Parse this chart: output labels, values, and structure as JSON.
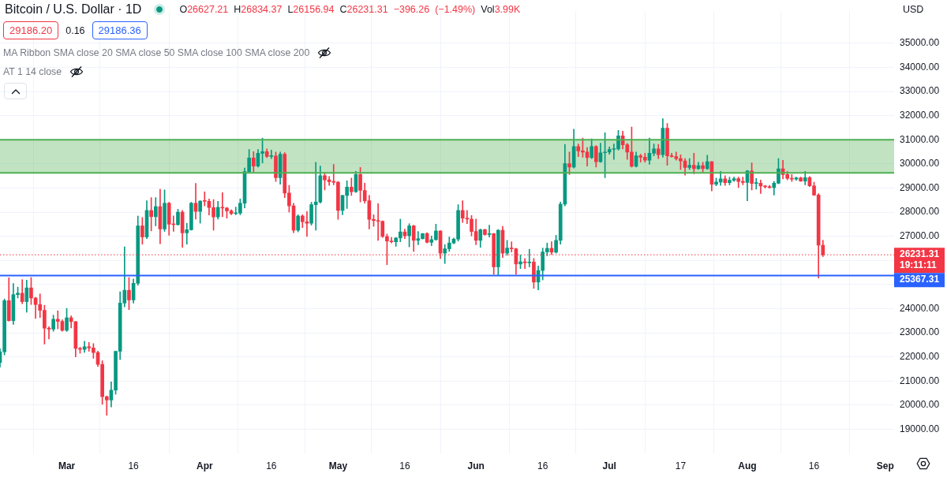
{
  "chart_data": {
    "type": "candlestick",
    "title": "Bitcoin / U.S. Dollar · 1D",
    "subtitle": "O26627.21 H26834.37 L26156.94 C26231.31 −396.26 (−1.49%) Vol3.99K",
    "annotations": [
      "29186.20",
      "0.16",
      "29186.36",
      "MA Ribbon SMA close 20 SMA close 50 SMA close 100 SMA close 200",
      "AT 1 14 close",
      "USD"
    ],
    "x": [
      "--02-14",
      "--02-15",
      "--02-16",
      "--02-17",
      "--02-18",
      "--02-19",
      "--02-20",
      "--02-21",
      "--02-22",
      "--02-23",
      "--02-24",
      "--02-25",
      "--02-26",
      "--02-27",
      "--02-28",
      "--03-01",
      "--03-02",
      "--03-03",
      "--03-04",
      "--03-05",
      "--03-06",
      "--03-07",
      "--03-08",
      "--03-09",
      "--03-10",
      "--03-11",
      "--03-12",
      "--03-13",
      "--03-14",
      "--03-15",
      "--03-16",
      "--03-17",
      "--03-18",
      "--03-19",
      "--03-20",
      "--03-21",
      "--03-22",
      "--03-23",
      "--03-24",
      "--03-25",
      "--03-26",
      "--03-27",
      "--03-28",
      "--03-29",
      "--03-30",
      "--03-31",
      "--04-01",
      "--04-02",
      "--04-03",
      "--04-04",
      "--04-05",
      "--04-06",
      "--04-07",
      "--04-08",
      "--04-09",
      "--04-10",
      "--04-11",
      "--04-12",
      "--04-13",
      "--04-14",
      "--04-15",
      "--04-16",
      "--04-17",
      "--04-18",
      "--04-19",
      "--04-20",
      "--04-21",
      "--04-22",
      "--04-23",
      "--04-24",
      "--04-25",
      "--04-26",
      "--04-27",
      "--04-28",
      "--04-29",
      "--04-30",
      "--05-01",
      "--05-02",
      "--05-03",
      "--05-04",
      "--05-05",
      "--05-06",
      "--05-07",
      "--05-08",
      "--05-09",
      "--05-10",
      "--05-11",
      "--05-12",
      "--05-13",
      "--05-14",
      "--05-15",
      "--05-16",
      "--05-17",
      "--05-18",
      "--05-19",
      "--05-20",
      "--05-21",
      "--05-22",
      "--05-23",
      "--05-24",
      "--05-25",
      "--05-26",
      "--05-27",
      "--05-28",
      "--05-29",
      "--05-30",
      "--05-31",
      "--06-01",
      "--06-02",
      "--06-03",
      "--06-04",
      "--06-05",
      "--06-06",
      "--06-07",
      "--06-08",
      "--06-09",
      "--06-10",
      "--06-11",
      "--06-12",
      "--06-13",
      "--06-14",
      "--06-15",
      "--06-16",
      "--06-17",
      "--06-18",
      "--06-19",
      "--06-20",
      "--06-21",
      "--06-22",
      "--06-23",
      "--06-24",
      "--06-25",
      "--06-26",
      "--06-27",
      "--06-28",
      "--06-29",
      "--06-30",
      "--07-01",
      "--07-02",
      "--07-03",
      "--07-04",
      "--07-05",
      "--07-06",
      "--07-07",
      "--07-08",
      "--07-09",
      "--07-10",
      "--07-11",
      "--07-12",
      "--07-13",
      "--07-14",
      "--07-15",
      "--07-16",
      "--07-17",
      "--07-18",
      "--07-19",
      "--07-20",
      "--07-21",
      "--07-22",
      "--07-23",
      "--07-24",
      "--07-25",
      "--07-26",
      "--07-27",
      "--07-28",
      "--07-29",
      "--07-30",
      "--07-31",
      "--08-01",
      "--08-02",
      "--08-03",
      "--08-04",
      "--08-05",
      "--08-06",
      "--08-07",
      "--08-08",
      "--08-09",
      "--08-10",
      "--08-11",
      "--08-12",
      "--08-13",
      "--08-14",
      "--08-15",
      "--08-16",
      "--08-17",
      "--08-18"
    ],
    "ohlc": [
      [
        21760,
        22340,
        21570,
        22210
      ],
      [
        22210,
        24400,
        22080,
        24330
      ],
      [
        24330,
        25280,
        23480,
        23500
      ],
      [
        23500,
        25040,
        23350,
        24580
      ],
      [
        24580,
        24890,
        24440,
        24640
      ],
      [
        24640,
        25200,
        24200,
        24290
      ],
      [
        24290,
        25180,
        23850,
        24860
      ],
      [
        24860,
        25290,
        24170,
        24440
      ],
      [
        24440,
        24470,
        23590,
        24170
      ],
      [
        24170,
        24610,
        23630,
        23930
      ],
      [
        23930,
        24140,
        22530,
        23190
      ],
      [
        23190,
        23250,
        22740,
        23150
      ],
      [
        23150,
        23730,
        23060,
        23560
      ],
      [
        23560,
        23910,
        23160,
        23470
      ],
      [
        23470,
        23540,
        23060,
        23100
      ],
      [
        23100,
        24010,
        23050,
        23620
      ],
      [
        23620,
        23700,
        23200,
        23460
      ],
      [
        23460,
        23470,
        22000,
        22350
      ],
      [
        22350,
        22400,
        22150,
        22310
      ],
      [
        22310,
        22650,
        22190,
        22420
      ],
      [
        22420,
        22600,
        22230,
        22370
      ],
      [
        22370,
        22550,
        21940,
        22180
      ],
      [
        22180,
        22240,
        21600,
        21690
      ],
      [
        21690,
        21840,
        20030,
        20350
      ],
      [
        20350,
        20380,
        19580,
        20210
      ],
      [
        20210,
        20960,
        19920,
        20620
      ],
      [
        20620,
        22240,
        20450,
        22230
      ],
      [
        22230,
        24700,
        21890,
        24230
      ],
      [
        24230,
        26560,
        24070,
        24760
      ],
      [
        24760,
        25290,
        23960,
        24360
      ],
      [
        24360,
        25230,
        24230,
        25050
      ],
      [
        25050,
        27840,
        24970,
        27430
      ],
      [
        27430,
        27780,
        26670,
        26970
      ],
      [
        26970,
        28470,
        26900,
        28070
      ],
      [
        28070,
        28600,
        27220,
        27810
      ],
      [
        27810,
        28600,
        27430,
        28230
      ],
      [
        28230,
        28950,
        26690,
        27300
      ],
      [
        27300,
        28920,
        27200,
        28370
      ],
      [
        28370,
        28410,
        27040,
        27500
      ],
      [
        27500,
        27840,
        27200,
        27480
      ],
      [
        27480,
        28120,
        27460,
        28000
      ],
      [
        28000,
        28070,
        26540,
        27140
      ],
      [
        27140,
        27540,
        26670,
        27270
      ],
      [
        27270,
        28410,
        27250,
        28370
      ],
      [
        28370,
        29190,
        27710,
        28030
      ],
      [
        28030,
        28470,
        27540,
        28460
      ],
      [
        28460,
        28840,
        28260,
        28450
      ],
      [
        28450,
        28550,
        27880,
        28190
      ],
      [
        28190,
        28520,
        27250,
        27800
      ],
      [
        27800,
        28450,
        27710,
        28200
      ],
      [
        28200,
        28810,
        27810,
        28170
      ],
      [
        28170,
        28200,
        27750,
        28050
      ],
      [
        28050,
        28100,
        27890,
        27940
      ],
      [
        27940,
        28210,
        27890,
        27960
      ],
      [
        27960,
        28550,
        27890,
        28370
      ],
      [
        28370,
        29830,
        28180,
        29680
      ],
      [
        29680,
        30600,
        29640,
        30250
      ],
      [
        30250,
        30510,
        29660,
        29910
      ],
      [
        29910,
        30600,
        29870,
        30440
      ],
      [
        30440,
        31070,
        30040,
        30510
      ],
      [
        30510,
        30620,
        30260,
        30310
      ],
      [
        30310,
        30570,
        30220,
        30330
      ],
      [
        30330,
        30490,
        29270,
        29430
      ],
      [
        29430,
        30490,
        29160,
        30400
      ],
      [
        30400,
        30470,
        28600,
        28790
      ],
      [
        28790,
        29110,
        28000,
        28260
      ],
      [
        28260,
        28370,
        27150,
        27250
      ],
      [
        27250,
        27890,
        27180,
        27840
      ],
      [
        27840,
        27890,
        27360,
        27600
      ],
      [
        27600,
        28020,
        26990,
        27540
      ],
      [
        27540,
        28410,
        27460,
        28310
      ],
      [
        28310,
        30070,
        27250,
        28420
      ],
      [
        28420,
        29910,
        28370,
        29510
      ],
      [
        29510,
        29620,
        28920,
        29340
      ],
      [
        29340,
        29480,
        29110,
        29260
      ],
      [
        29260,
        29980,
        29130,
        29240
      ],
      [
        29240,
        29270,
        27700,
        28070
      ],
      [
        28070,
        28700,
        27890,
        28690
      ],
      [
        28690,
        29300,
        28150,
        29040
      ],
      [
        29040,
        29410,
        28690,
        28850
      ],
      [
        28850,
        29690,
        28810,
        29560
      ],
      [
        29560,
        29850,
        28420,
        28900
      ],
      [
        28900,
        29200,
        28370,
        28470
      ],
      [
        28470,
        28690,
        27300,
        27700
      ],
      [
        27700,
        27890,
        27410,
        27650
      ],
      [
        27650,
        28350,
        26830,
        27620
      ],
      [
        27620,
        27640,
        26950,
        26990
      ],
      [
        26990,
        27090,
        25820,
        26800
      ],
      [
        26800,
        26950,
        26720,
        26770
      ],
      [
        26770,
        26950,
        26580,
        26930
      ],
      [
        26930,
        27710,
        26770,
        27180
      ],
      [
        27180,
        27300,
        26900,
        27020
      ],
      [
        27020,
        27520,
        26560,
        27430
      ],
      [
        27430,
        27460,
        26370,
        26830
      ],
      [
        26830,
        27200,
        26650,
        26900
      ],
      [
        26900,
        27120,
        26880,
        27110
      ],
      [
        27110,
        27150,
        26720,
        26750
      ],
      [
        26750,
        27010,
        26610,
        26860
      ],
      [
        26860,
        27500,
        26830,
        27220
      ],
      [
        27220,
        27230,
        26080,
        26300
      ],
      [
        26300,
        26650,
        25870,
        26480
      ],
      [
        26480,
        26970,
        26370,
        26720
      ],
      [
        26720,
        26930,
        26690,
        26880
      ],
      [
        26880,
        28310,
        26800,
        28070
      ],
      [
        28070,
        28470,
        27570,
        27750
      ],
      [
        27750,
        28070,
        27520,
        27710
      ],
      [
        27710,
        27860,
        27010,
        27200
      ],
      [
        27200,
        27710,
        26650,
        26830
      ],
      [
        26830,
        27300,
        26540,
        27270
      ],
      [
        27270,
        27300,
        27040,
        27070
      ],
      [
        27070,
        27460,
        26970,
        27110
      ],
      [
        27110,
        27120,
        25420,
        25730
      ],
      [
        25730,
        27280,
        25390,
        27250
      ],
      [
        27250,
        27410,
        26120,
        26300
      ],
      [
        26300,
        26830,
        26210,
        26510
      ],
      [
        26510,
        26770,
        26350,
        26480
      ],
      [
        26480,
        26500,
        25420,
        25850
      ],
      [
        25850,
        26220,
        25660,
        25940
      ],
      [
        25940,
        26080,
        25660,
        25900
      ],
      [
        25900,
        26460,
        25730,
        25930
      ],
      [
        25930,
        26080,
        24840,
        25100
      ],
      [
        25100,
        25770,
        24780,
        25580
      ],
      [
        25580,
        26510,
        25190,
        26350
      ],
      [
        26350,
        26720,
        26190,
        26500
      ],
      [
        26500,
        26770,
        26240,
        26340
      ],
      [
        26340,
        27040,
        26300,
        26830
      ],
      [
        26830,
        28420,
        26670,
        28330
      ],
      [
        28330,
        30810,
        28260,
        30010
      ],
      [
        30010,
        30490,
        29560,
        29870
      ],
      [
        29870,
        31440,
        29830,
        30720
      ],
      [
        30720,
        30830,
        30300,
        30540
      ],
      [
        30540,
        31070,
        30280,
        30490
      ],
      [
        30490,
        30680,
        29910,
        30260
      ],
      [
        30260,
        31040,
        30220,
        30720
      ],
      [
        30720,
        30760,
        29870,
        30090
      ],
      [
        30090,
        30860,
        30060,
        30460
      ],
      [
        30460,
        31290,
        29430,
        30490
      ],
      [
        30490,
        30700,
        30400,
        30600
      ],
      [
        30600,
        30830,
        30190,
        30620
      ],
      [
        30620,
        31390,
        30570,
        31160
      ],
      [
        31160,
        31360,
        30620,
        30790
      ],
      [
        30790,
        30850,
        30190,
        30490
      ],
      [
        30490,
        31530,
        29870,
        29900
      ],
      [
        29900,
        30490,
        29870,
        30340
      ],
      [
        30340,
        30400,
        30070,
        30280
      ],
      [
        30280,
        30440,
        30070,
        30150
      ],
      [
        30150,
        31070,
        29980,
        30440
      ],
      [
        30440,
        30830,
        30330,
        30620
      ],
      [
        30620,
        30810,
        30220,
        30380
      ],
      [
        30380,
        31870,
        30280,
        31480
      ],
      [
        31480,
        31680,
        29940,
        30330
      ],
      [
        30330,
        30440,
        30280,
        30300
      ],
      [
        30300,
        30490,
        30150,
        30220
      ],
      [
        30220,
        30380,
        29770,
        30120
      ],
      [
        30120,
        30220,
        29530,
        29850
      ],
      [
        29850,
        30220,
        29770,
        29940
      ],
      [
        29940,
        30440,
        29590,
        29800
      ],
      [
        29800,
        30070,
        29770,
        29930
      ],
      [
        29930,
        30070,
        29660,
        29800
      ],
      [
        29800,
        30360,
        29770,
        30090
      ],
      [
        30090,
        30100,
        28880,
        29160
      ],
      [
        29160,
        29410,
        29090,
        29250
      ],
      [
        29250,
        29690,
        29110,
        29380
      ],
      [
        29380,
        29510,
        29110,
        29220
      ],
      [
        29220,
        29450,
        29130,
        29320
      ],
      [
        29320,
        29450,
        29270,
        29390
      ],
      [
        29390,
        29450,
        29020,
        29270
      ],
      [
        29270,
        29450,
        29130,
        29230
      ],
      [
        29230,
        29730,
        28470,
        29710
      ],
      [
        29710,
        30040,
        28920,
        29190
      ],
      [
        29190,
        29400,
        28950,
        29200
      ],
      [
        29200,
        29330,
        28770,
        29080
      ],
      [
        29080,
        29110,
        28990,
        29050
      ],
      [
        29050,
        29110,
        28990,
        29020
      ],
      [
        29020,
        29270,
        28710,
        29200
      ],
      [
        29200,
        30220,
        29170,
        29800
      ],
      [
        29800,
        30150,
        29380,
        29560
      ],
      [
        29560,
        29690,
        29340,
        29400
      ],
      [
        29400,
        29560,
        29270,
        29370
      ],
      [
        29370,
        29450,
        29320,
        29420
      ],
      [
        29420,
        29450,
        29270,
        29290
      ],
      [
        29290,
        29690,
        29130,
        29430
      ],
      [
        29430,
        29480,
        29060,
        29090
      ],
      [
        29090,
        29240,
        28690,
        28710
      ],
      [
        28710,
        28770,
        25270,
        26630
      ],
      [
        26627.21,
        26834.37,
        26156.94,
        26231.31
      ]
    ],
    "colors": [
      "#089981",
      "#089981",
      "#f23645",
      "#089981",
      "#089981",
      "#f23645",
      "#089981",
      "#f23645",
      "#f23645",
      "#f23645",
      "#f23645",
      "#f23645",
      "#089981",
      "#f23645",
      "#f23645",
      "#089981",
      "#f23645",
      "#f23645",
      "#f23645",
      "#089981",
      "#f23645",
      "#f23645",
      "#f23645",
      "#f23645",
      "#f23645",
      "#089981",
      "#089981",
      "#089981",
      "#089981",
      "#f23645",
      "#089981",
      "#089981",
      "#f23645",
      "#089981",
      "#f23645",
      "#089981",
      "#f23645",
      "#089981",
      "#f23645",
      "#f23645",
      "#089981",
      "#f23645",
      "#089981",
      "#089981",
      "#f23645",
      "#089981",
      "#f23645",
      "#f23645",
      "#f23645",
      "#089981",
      "#f23645",
      "#f23645",
      "#f23645",
      "#089981",
      "#089981",
      "#089981",
      "#089981",
      "#f23645",
      "#089981",
      "#089981",
      "#f23645",
      "#089981",
      "#f23645",
      "#089981",
      "#f23645",
      "#f23645",
      "#f23645",
      "#089981",
      "#f23645",
      "#f23645",
      "#089981",
      "#089981",
      "#089981",
      "#f23645",
      "#f23645",
      "#f23645",
      "#f23645",
      "#089981",
      "#089981",
      "#f23645",
      "#089981",
      "#f23645",
      "#f23645",
      "#f23645",
      "#f23645",
      "#f23645",
      "#f23645",
      "#f23645",
      "#f23645",
      "#089981",
      "#089981",
      "#f23645",
      "#089981",
      "#f23645",
      "#089981",
      "#089981",
      "#f23645",
      "#089981",
      "#089981",
      "#f23645",
      "#089981",
      "#089981",
      "#089981",
      "#089981",
      "#f23645",
      "#f23645",
      "#f23645",
      "#f23645",
      "#089981",
      "#f23645",
      "#089981",
      "#f23645",
      "#089981",
      "#f23645",
      "#089981",
      "#f23645",
      "#f23645",
      "#089981",
      "#f23645",
      "#089981",
      "#f23645",
      "#089981",
      "#089981",
      "#089981",
      "#f23645",
      "#089981",
      "#089981",
      "#089981",
      "#f23645",
      "#089981",
      "#f23645",
      "#f23645",
      "#f23645",
      "#089981",
      "#f23645",
      "#089981",
      "#089981",
      "#089981",
      "#089981",
      "#089981",
      "#f23645",
      "#f23645",
      "#f23645",
      "#089981",
      "#f23645",
      "#f23645",
      "#089981",
      "#089981",
      "#f23645",
      "#089981",
      "#f23645",
      "#f23645",
      "#f23645",
      "#f23645",
      "#f23645",
      "#089981",
      "#f23645",
      "#089981",
      "#f23645",
      "#089981",
      "#f23645",
      "#089981",
      "#089981",
      "#f23645",
      "#089981",
      "#089981",
      "#f23645",
      "#f23645",
      "#089981",
      "#f23645",
      "#089981",
      "#f23645",
      "#f23645",
      "#f23645",
      "#089981",
      "#089981",
      "#f23645",
      "#f23645",
      "#f23645",
      "#089981",
      "#f23645",
      "#089981",
      "#f23645",
      "#f23645",
      "#f23645",
      "#f23645"
    ],
    "xlim": [
      "--02-14",
      "--09-03"
    ],
    "xticks": [
      {
        "value": "--03-01",
        "label": "Mar"
      },
      {
        "value": "--03-16",
        "label": "16"
      },
      {
        "value": "--04-01",
        "label": "Apr"
      },
      {
        "value": "--04-16",
        "label": "16"
      },
      {
        "value": "--05-01",
        "label": "May"
      },
      {
        "value": "--05-16",
        "label": "16"
      },
      {
        "value": "--06-01",
        "label": "Jun"
      },
      {
        "value": "--06-16",
        "label": "16"
      },
      {
        "value": "--07-01",
        "label": "Jul"
      },
      {
        "value": "--07-17",
        "label": "17"
      },
      {
        "value": "--08-01",
        "label": "Aug"
      },
      {
        "value": "--08-16",
        "label": "16"
      },
      {
        "value": "--09-01",
        "label": "Sep"
      }
    ],
    "ylim": [
      18000,
      36330
    ],
    "yticks": [
      {
        "value": 19000,
        "label": "19000.00"
      },
      {
        "value": 20000,
        "label": "20000.00"
      },
      {
        "value": 21000,
        "label": "21000.00"
      },
      {
        "value": 22000,
        "label": "22000.00"
      },
      {
        "value": 23000,
        "label": "23000.00"
      },
      {
        "value": 24000,
        "label": "24000.00"
      },
      {
        "value": 25000,
        "label": null
      },
      {
        "value": 26000,
        "label": null
      },
      {
        "value": 27000,
        "label": "27000.00"
      },
      {
        "value": 28000,
        "label": "28000.00"
      },
      {
        "value": 29000,
        "label": "29000.00"
      },
      {
        "value": 30000,
        "label": "30000.00"
      },
      {
        "value": 31000,
        "label": "31000.00"
      },
      {
        "value": 32000,
        "label": "32000.00"
      },
      {
        "value": 33000,
        "label": "33000.00"
      },
      {
        "value": 34000,
        "label": "34000.00"
      },
      {
        "value": 35000,
        "label": "35000.00"
      }
    ],
    "grid": true,
    "bands": [
      {
        "axis": "y",
        "from": 29630,
        "to": 31000,
        "color": "#4caf50"
      }
    ],
    "ref_lines": [
      {
        "axis": "y",
        "value": 31000,
        "color": "#4caf50",
        "line_style": "solid"
      },
      {
        "axis": "y",
        "value": 29630,
        "color": "#4caf50",
        "line_style": "solid"
      },
      {
        "axis": "y",
        "value": 26231.31,
        "label": "26231.31\n19:11:11",
        "color": "#f23645",
        "line_style": "dotted"
      },
      {
        "axis": "y",
        "value": 25367.31,
        "label": "25367.31",
        "color": "#2962ff",
        "line_style": "solid"
      }
    ]
  }
}
